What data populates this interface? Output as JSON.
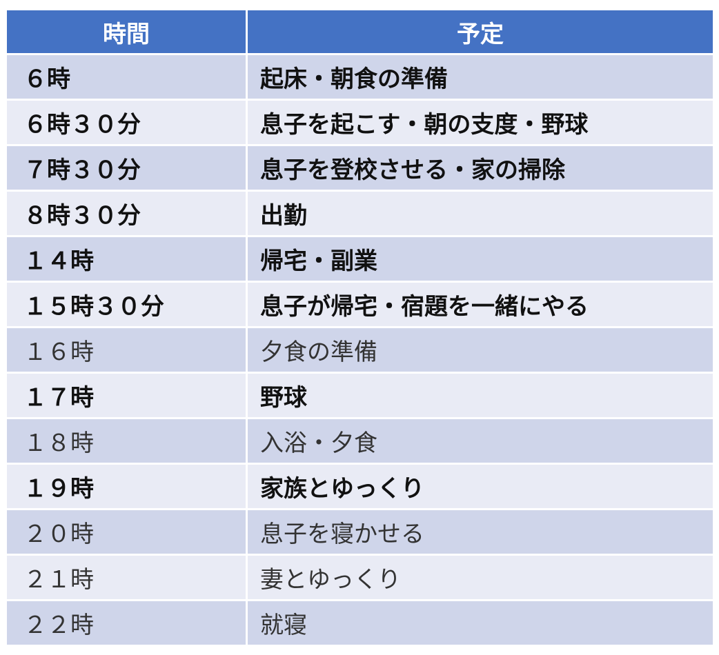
{
  "header": {
    "time": "時間",
    "schedule": "予定"
  },
  "colors": {
    "header": "#4472C4",
    "row_odd": "#CFD5EA",
    "row_even": "#E9EBF5"
  },
  "rows": [
    {
      "time": "６時",
      "schedule": "起床・朝食の準備",
      "bold": true
    },
    {
      "time": "６時３０分",
      "schedule": "息子を起こす・朝の支度・野球",
      "bold": true
    },
    {
      "time": "７時３０分",
      "schedule": "息子を登校させる・家の掃除",
      "bold": true
    },
    {
      "time": "８時３０分",
      "schedule": "出勤",
      "bold": true
    },
    {
      "time": "１４時",
      "schedule": "帰宅・副業",
      "bold": true
    },
    {
      "time": "１５時３０分",
      "schedule": "息子が帰宅・宿題を一緒にやる",
      "bold": true
    },
    {
      "time": "１６時",
      "schedule": "夕食の準備",
      "bold": false
    },
    {
      "time": "１７時",
      "schedule": "野球",
      "bold": true
    },
    {
      "time": "１８時",
      "schedule": "入浴・夕食",
      "bold": false
    },
    {
      "time": "１９時",
      "schedule": "家族とゆっくり",
      "bold": true
    },
    {
      "time": "２０時",
      "schedule": "息子を寝かせる",
      "bold": false
    },
    {
      "time": "２１時",
      "schedule": "妻とゆっくり",
      "bold": false
    },
    {
      "time": "２２時",
      "schedule": "就寝",
      "bold": false
    }
  ]
}
